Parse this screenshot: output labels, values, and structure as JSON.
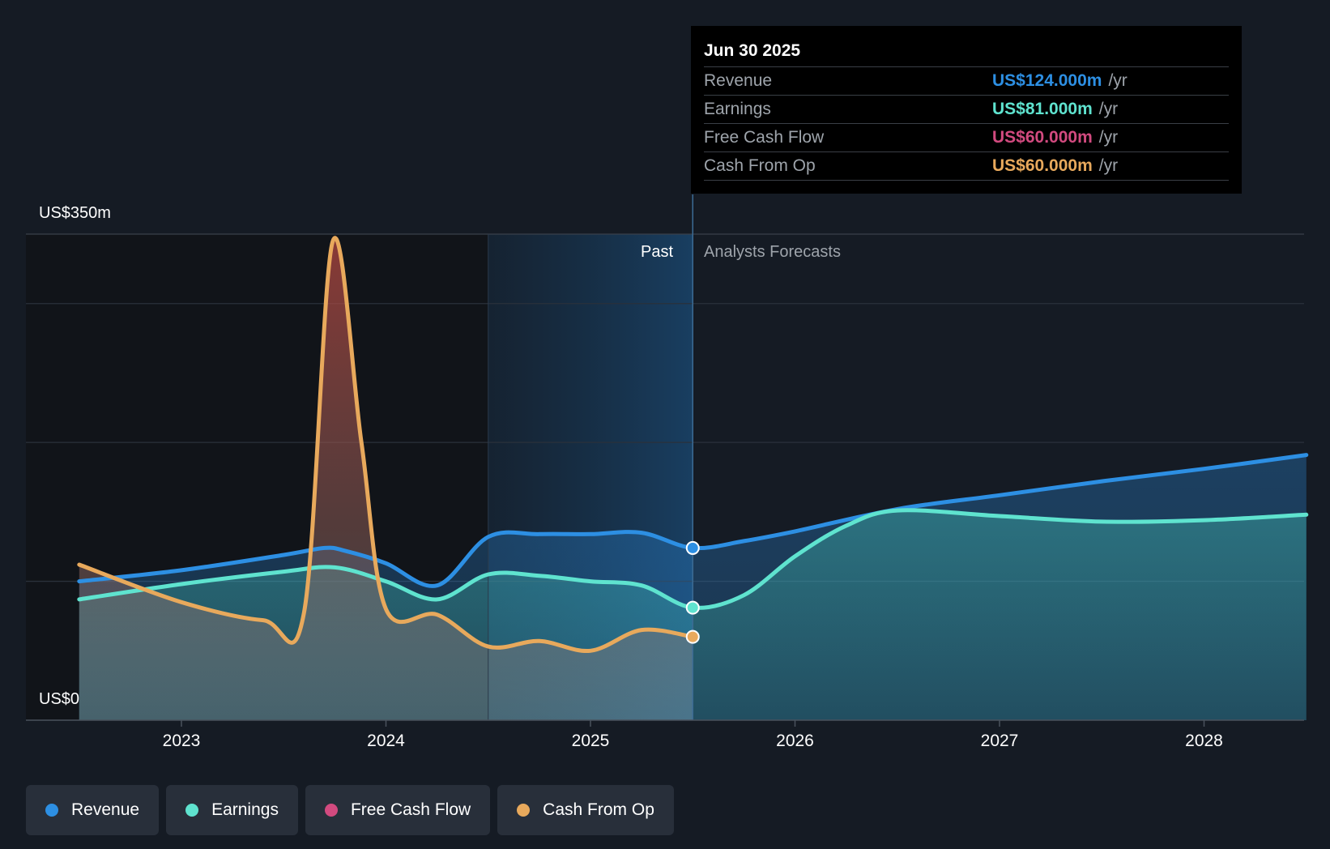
{
  "chart_data": {
    "type": "area",
    "y_axis": {
      "top_label": "US$350m",
      "bottom_label": "US$0",
      "ylim": [
        0,
        350
      ]
    },
    "x_ticks": [
      "2023",
      "2024",
      "2025",
      "2026",
      "2027",
      "2028"
    ],
    "region_labels": {
      "past": "Past",
      "forecast": "Analysts Forecasts"
    },
    "series": [
      {
        "name": "Revenue",
        "color": "#2d8fe3",
        "points": [
          [
            2022.5,
            100
          ],
          [
            2023.0,
            108
          ],
          [
            2023.5,
            119
          ],
          [
            2023.7,
            124
          ],
          [
            2023.8,
            122
          ],
          [
            2024.0,
            113
          ],
          [
            2024.25,
            97
          ],
          [
            2024.5,
            132
          ],
          [
            2024.75,
            134
          ],
          [
            2025.0,
            134
          ],
          [
            2025.25,
            135
          ],
          [
            2025.5,
            124
          ],
          [
            2025.75,
            129
          ],
          [
            2026.0,
            136
          ],
          [
            2026.5,
            152
          ],
          [
            2027.0,
            162
          ],
          [
            2027.5,
            172
          ],
          [
            2028.0,
            181
          ],
          [
            2028.5,
            191
          ]
        ]
      },
      {
        "name": "Earnings",
        "color": "#5fe3cf",
        "points": [
          [
            2022.5,
            87
          ],
          [
            2023.0,
            98
          ],
          [
            2023.5,
            107
          ],
          [
            2023.75,
            110
          ],
          [
            2024.0,
            100
          ],
          [
            2024.25,
            87
          ],
          [
            2024.5,
            105
          ],
          [
            2024.75,
            104
          ],
          [
            2025.0,
            100
          ],
          [
            2025.25,
            97
          ],
          [
            2025.5,
            81
          ],
          [
            2025.75,
            90
          ],
          [
            2026.0,
            118
          ],
          [
            2026.25,
            140
          ],
          [
            2026.5,
            151
          ],
          [
            2027.0,
            147
          ],
          [
            2027.5,
            143
          ],
          [
            2028.0,
            144
          ],
          [
            2028.5,
            148
          ]
        ]
      },
      {
        "name": "Free Cash Flow",
        "color": "#d24a7f",
        "points": []
      },
      {
        "name": "Cash From Op",
        "color": "#e8a95c",
        "points": [
          [
            2022.5,
            112
          ],
          [
            2023.0,
            85
          ],
          [
            2023.4,
            72
          ],
          [
            2023.6,
            78
          ],
          [
            2023.74,
            345
          ],
          [
            2023.88,
            200
          ],
          [
            2024.0,
            80
          ],
          [
            2024.25,
            76
          ],
          [
            2024.5,
            53
          ],
          [
            2024.75,
            57
          ],
          [
            2025.0,
            50
          ],
          [
            2025.25,
            65
          ],
          [
            2025.5,
            60
          ]
        ]
      }
    ],
    "past_end": 2025.5,
    "highlight_start": 2024.5
  },
  "tooltip": {
    "date": "Jun 30 2025",
    "rows": [
      {
        "name": "Revenue",
        "value": "US$124.000m",
        "unit": "/yr",
        "color": "#2d8fe3"
      },
      {
        "name": "Earnings",
        "value": "US$81.000m",
        "unit": "/yr",
        "color": "#5fe3cf"
      },
      {
        "name": "Free Cash Flow",
        "value": "US$60.000m",
        "unit": "/yr",
        "color": "#d24a7f"
      },
      {
        "name": "Cash From Op",
        "value": "US$60.000m",
        "unit": "/yr",
        "color": "#e8a95c"
      }
    ]
  },
  "legend": [
    {
      "label": "Revenue",
      "color": "#2d8fe3"
    },
    {
      "label": "Earnings",
      "color": "#5fe3cf"
    },
    {
      "label": "Free Cash Flow",
      "color": "#d24a7f"
    },
    {
      "label": "Cash From Op",
      "color": "#e8a95c"
    }
  ]
}
